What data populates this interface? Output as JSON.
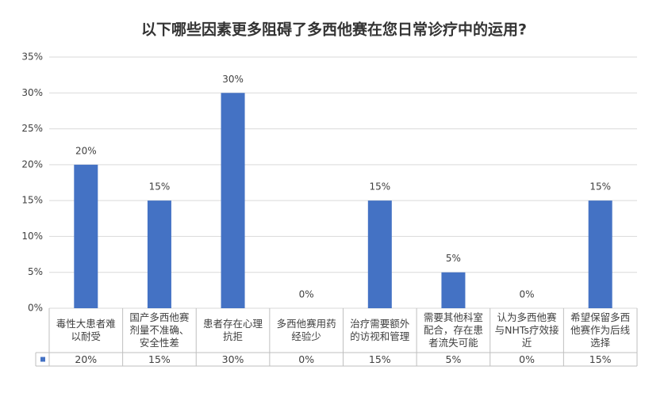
{
  "chart_data": {
    "type": "bar",
    "title": "以下哪些因素更多阻碍了多西他赛在您日常诊疗中的运用?",
    "categories": [
      "毒性大患者难以耐受",
      "国产多西他赛剂量不准确、安全性差",
      "患者存在心理抗拒",
      "多西他赛用药经验少",
      "治疗需要额外的访视和管理",
      "需要其他科室配合，存在患者流失可能",
      "认为多西他赛与NHTs疗效接近",
      "希望保留多西他赛作为后线选择"
    ],
    "values": [
      20,
      15,
      30,
      0,
      15,
      5,
      0,
      15
    ],
    "value_labels": [
      "20%",
      "15%",
      "30%",
      "0%",
      "15%",
      "5%",
      "0%",
      "15%"
    ],
    "color": "#4472c4",
    "ylim": [
      0,
      35
    ],
    "yticks": [
      {
        "value": 0,
        "label": "0%"
      },
      {
        "value": 5,
        "label": "5%"
      },
      {
        "value": 10,
        "label": "10%"
      },
      {
        "value": 15,
        "label": "15%"
      },
      {
        "value": 20,
        "label": "20%"
      },
      {
        "value": 25,
        "label": "25%"
      },
      {
        "value": 30,
        "label": "30%"
      },
      {
        "value": 35,
        "label": "35%"
      }
    ],
    "grid": true
  }
}
